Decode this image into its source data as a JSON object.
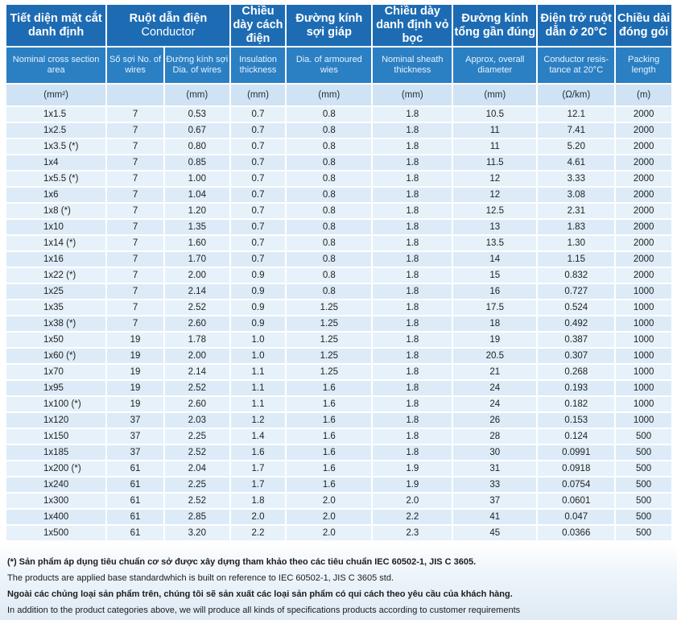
{
  "header": {
    "vn": [
      "Tiết diện mặt cắt danh định",
      "Ruột dẫn điện",
      "Chiều dày cách điện",
      "Đường kính sợi giáp",
      "Chiều dày danh định vỏ bọc",
      "Đường kính tổng gần đúng",
      "Điện trở ruột dẫn ở 20°C",
      "Chiều dài đóng gói"
    ],
    "conductor_en": "Conductor",
    "en": [
      "Nominal cross section area",
      "Số sợi No. of wires",
      "Đường kính sợi Dia. of wires",
      "Insulation thickness",
      "Dia. of armoured wies",
      "Nominal sheath thickness",
      "Approx, overall diameter",
      "Conductor resis-tance at 20°C",
      "Packing length"
    ],
    "units": [
      "(mm²)",
      "",
      "(mm)",
      "(mm)",
      "(mm)",
      "(mm)",
      "(mm)",
      "(Ω/km)",
      "(m)"
    ]
  },
  "rows": [
    [
      "1x1.5",
      "7",
      "0.53",
      "0.7",
      "0.8",
      "1.8",
      "10.5",
      "12.1",
      "2000"
    ],
    [
      "1x2.5",
      "7",
      "0.67",
      "0.7",
      "0.8",
      "1.8",
      "11",
      "7.41",
      "2000"
    ],
    [
      "1x3.5 (*)",
      "7",
      "0.80",
      "0.7",
      "0.8",
      "1.8",
      "11",
      "5.20",
      "2000"
    ],
    [
      "1x4",
      "7",
      "0.85",
      "0.7",
      "0.8",
      "1.8",
      "11.5",
      "4.61",
      "2000"
    ],
    [
      "1x5.5 (*)",
      "7",
      "1.00",
      "0.7",
      "0.8",
      "1.8",
      "12",
      "3.33",
      "2000"
    ],
    [
      "1x6",
      "7",
      "1.04",
      "0.7",
      "0.8",
      "1.8",
      "12",
      "3.08",
      "2000"
    ],
    [
      "1x8 (*)",
      "7",
      "1.20",
      "0.7",
      "0.8",
      "1.8",
      "12.5",
      "2.31",
      "2000"
    ],
    [
      "1x10",
      "7",
      "1.35",
      "0.7",
      "0.8",
      "1.8",
      "13",
      "1.83",
      "2000"
    ],
    [
      "1x14 (*)",
      "7",
      "1.60",
      "0.7",
      "0.8",
      "1.8",
      "13.5",
      "1.30",
      "2000"
    ],
    [
      "1x16",
      "7",
      "1.70",
      "0.7",
      "0.8",
      "1.8",
      "14",
      "1.15",
      "2000"
    ],
    [
      "1x22 (*)",
      "7",
      "2.00",
      "0.9",
      "0.8",
      "1.8",
      "15",
      "0.832",
      "2000"
    ],
    [
      "1x25",
      "7",
      "2.14",
      "0.9",
      "0.8",
      "1.8",
      "16",
      "0.727",
      "1000"
    ],
    [
      "1x35",
      "7",
      "2.52",
      "0.9",
      "1.25",
      "1.8",
      "17.5",
      "0.524",
      "1000"
    ],
    [
      "1x38 (*)",
      "7",
      "2.60",
      "0.9",
      "1.25",
      "1.8",
      "18",
      "0.492",
      "1000"
    ],
    [
      "1x50",
      "19",
      "1.78",
      "1.0",
      "1.25",
      "1.8",
      "19",
      "0.387",
      "1000"
    ],
    [
      "1x60 (*)",
      "19",
      "2.00",
      "1.0",
      "1.25",
      "1.8",
      "20.5",
      "0.307",
      "1000"
    ],
    [
      "1x70",
      "19",
      "2.14",
      "1.1",
      "1.25",
      "1.8",
      "21",
      "0.268",
      "1000"
    ],
    [
      "1x95",
      "19",
      "2.52",
      "1.1",
      "1.6",
      "1.8",
      "24",
      "0.193",
      "1000"
    ],
    [
      "1x100 (*)",
      "19",
      "2.60",
      "1.1",
      "1.6",
      "1.8",
      "24",
      "0.182",
      "1000"
    ],
    [
      "1x120",
      "37",
      "2.03",
      "1.2",
      "1.6",
      "1.8",
      "26",
      "0.153",
      "1000"
    ],
    [
      "1x150",
      "37",
      "2.25",
      "1.4",
      "1.6",
      "1.8",
      "28",
      "0.124",
      "500"
    ],
    [
      "1x185",
      "37",
      "2.52",
      "1.6",
      "1.6",
      "1.8",
      "30",
      "0.0991",
      "500"
    ],
    [
      "1x200 (*)",
      "61",
      "2.04",
      "1.7",
      "1.6",
      "1.9",
      "31",
      "0.0918",
      "500"
    ],
    [
      "1x240",
      "61",
      "2.25",
      "1.7",
      "1.6",
      "1.9",
      "33",
      "0.0754",
      "500"
    ],
    [
      "1x300",
      "61",
      "2.52",
      "1.8",
      "2.0",
      "2.0",
      "37",
      "0.0601",
      "500"
    ],
    [
      "1x400",
      "61",
      "2.85",
      "2.0",
      "2.0",
      "2.2",
      "41",
      "0.047",
      "500"
    ],
    [
      "1x500",
      "61",
      "3.20",
      "2.2",
      "2.0",
      "2.3",
      "45",
      "0.0366",
      "500"
    ]
  ],
  "notes": [
    "(*) Sản phẩm áp dụng tiêu chuẩn cơ sở được xây dựng tham khảo theo các tiêu chuẩn IEC 60502-1, JIS C 3605.",
    "The products are applied base standardwhich is built on reference to IEC 60502-1, JIS C 3605 std.",
    "Ngoài các chủng loại sản phẩm trên, chúng tôi sẽ sản xuất các loại sản phẩm có qui cách theo yêu cầu của khách hàng.",
    "In addition to the product categories above, we will produce all kinds of specifications products according to customer requirements"
  ]
}
